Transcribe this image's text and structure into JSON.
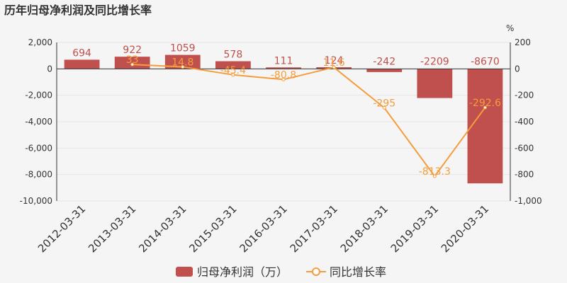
{
  "chart_data": {
    "type": "bar",
    "title": "历年归母净利润及同比增长率",
    "right_unit": "%",
    "categories": [
      "2012-03-31",
      "2013-03-31",
      "2014-03-31",
      "2015-03-31",
      "2016-03-31",
      "2017-03-31",
      "2018-03-31",
      "2019-03-31",
      "2020-03-31"
    ],
    "left_axis": {
      "min": -10000,
      "max": 2000,
      "ticks": [
        "2,000",
        "0",
        "-2,000",
        "-4,000",
        "-6,000",
        "-8,000",
        "-10,000"
      ]
    },
    "right_axis": {
      "min": -1000,
      "max": 200,
      "ticks": [
        "200",
        "0",
        "-200",
        "-400",
        "-600",
        "-800",
        "-1,000"
      ]
    },
    "series": [
      {
        "name": "归母净利润（万）",
        "type": "bar",
        "color": "#c0504d",
        "values": [
          694,
          922,
          1059,
          578,
          111,
          124,
          -242,
          -2209,
          -8670
        ],
        "labels": [
          "694",
          "922",
          "1059",
          "578",
          "111",
          "124",
          "-242",
          "-2209",
          "-8670"
        ]
      },
      {
        "name": "同比增长率",
        "type": "line",
        "color": "#f59d3d",
        "values": [
          null,
          33,
          14.8,
          -45.4,
          -80.8,
          11.6,
          -295,
          -813.3,
          -292.6
        ],
        "labels": [
          "",
          "33",
          "14.8",
          "-45.4",
          "-80.8",
          "11.6",
          "-295",
          "-813.3",
          "-292.6"
        ]
      }
    ],
    "legend_position": "bottom"
  }
}
